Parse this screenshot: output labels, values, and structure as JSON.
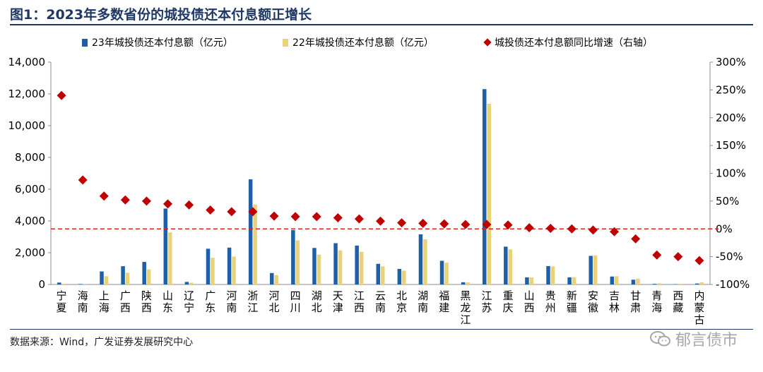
{
  "header": {
    "title": "图1：2023年多数省份的城投债还本付息额正增长"
  },
  "footer": {
    "source": "数据来源：Wind，广发证券发展研究中心",
    "watermark": "郁言债市"
  },
  "colors": {
    "bar23": "#1f5fa8",
    "bar22": "#e8d27c",
    "growth": "#c00000",
    "refline": "#e02020"
  },
  "chart_data": {
    "type": "bar",
    "categories": [
      "宁夏",
      "海南",
      "上海",
      "广西",
      "陕西",
      "山东",
      "辽宁",
      "广东",
      "河南",
      "浙江",
      "河北",
      "四川",
      "湖北",
      "天津",
      "江西",
      "云南",
      "北京",
      "湖南",
      "福建",
      "黑龙江",
      "江苏",
      "重庆",
      "山西",
      "贵州",
      "新疆",
      "安徽",
      "吉林",
      "甘肃",
      "青海",
      "西藏",
      "内蒙古"
    ],
    "category_labels": [
      [
        "宁",
        "夏"
      ],
      [
        "海",
        "南"
      ],
      [
        "上",
        "海"
      ],
      [
        "广",
        "西"
      ],
      [
        "陕",
        "西"
      ],
      [
        "山",
        "东"
      ],
      [
        "辽",
        "宁"
      ],
      [
        "广",
        "东"
      ],
      [
        "河",
        "南"
      ],
      [
        "浙",
        "江"
      ],
      [
        "河",
        "北"
      ],
      [
        "四",
        "川"
      ],
      [
        "湖",
        "北"
      ],
      [
        "天",
        "津"
      ],
      [
        "江",
        "西"
      ],
      [
        "云",
        "南"
      ],
      [
        "北",
        "京"
      ],
      [
        "湖",
        "南"
      ],
      [
        "福",
        "建"
      ],
      [
        "黑",
        "龙",
        "江"
      ],
      [
        "江",
        "苏"
      ],
      [
        "重",
        "庆"
      ],
      [
        "山",
        "西"
      ],
      [
        "贵",
        "州"
      ],
      [
        "新",
        "疆"
      ],
      [
        "安",
        "徽"
      ],
      [
        "吉",
        "林"
      ],
      [
        "甘",
        "肃"
      ],
      [
        "青",
        "海"
      ],
      [
        "西",
        "藏"
      ],
      [
        "内",
        "蒙",
        "古"
      ]
    ],
    "series": [
      {
        "name": "23年城投债还本付息额（亿元）",
        "kind": "bar",
        "axis": "left",
        "values": [
          120,
          30,
          820,
          1150,
          1420,
          4780,
          160,
          2250,
          2320,
          6620,
          720,
          3420,
          2300,
          2600,
          2450,
          1300,
          980,
          3160,
          1490,
          140,
          12300,
          2380,
          450,
          1160,
          450,
          1800,
          500,
          300,
          40,
          20,
          60
        ]
      },
      {
        "name": "22年城投债还本付息额（亿元）",
        "kind": "bar",
        "axis": "left",
        "values": [
          40,
          10,
          520,
          740,
          950,
          3280,
          110,
          1680,
          1760,
          5030,
          580,
          2780,
          1880,
          2150,
          2060,
          1140,
          870,
          2850,
          1370,
          130,
          11380,
          2210,
          440,
          1140,
          460,
          1830,
          520,
          370,
          75,
          40,
          140
        ]
      },
      {
        "name": "城投债还本付息额同比增速（右轴）",
        "kind": "scatter",
        "axis": "right",
        "values": [
          240,
          88,
          59,
          52,
          50,
          45,
          43,
          34,
          31,
          31,
          23,
          22,
          22,
          20,
          18,
          14,
          11,
          10,
          9,
          8,
          8,
          7,
          2,
          1,
          0,
          -2,
          -5,
          -18,
          -47,
          -50,
          -57
        ]
      }
    ],
    "left_axis": {
      "min": 0,
      "max": 14000,
      "ticks": [
        "0",
        "2,000",
        "4,000",
        "6,000",
        "8,000",
        "10,000",
        "12,000",
        "14,000"
      ]
    },
    "right_axis": {
      "min": -100,
      "max": 300,
      "ticks": [
        "-100%",
        "-50%",
        "0%",
        "50%",
        "100%",
        "150%",
        "200%",
        "250%",
        "300%"
      ]
    },
    "reference_line": {
      "axis": "right",
      "value": 0,
      "style": "dashed"
    },
    "legend_position": "top",
    "grid": false
  }
}
